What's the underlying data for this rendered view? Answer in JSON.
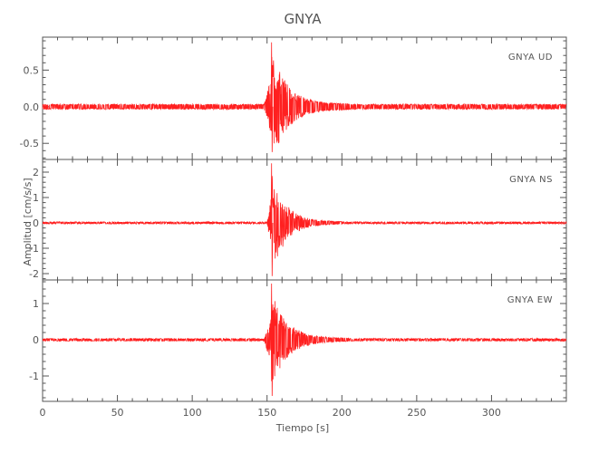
{
  "chart_data": {
    "type": "line",
    "title": "GNYA",
    "xlabel": "Tiempo [s]",
    "ylabel": "Amplitud [cm/s/s]",
    "xlim": [
      0,
      350
    ],
    "xticks": [
      0,
      50,
      100,
      150,
      200,
      250,
      300
    ],
    "line_color": "#ff2020",
    "grid": false,
    "panels": [
      {
        "label": "GNYA   UD",
        "ylim": [
          -0.72,
          0.95
        ],
        "yticks": [
          0.5,
          0.0,
          -0.5
        ],
        "ytick_labels": [
          "0.5",
          "0.0",
          "-0.5"
        ],
        "waveform": {
          "noise_amplitude": 0.035,
          "onset_s": 148,
          "peak_time_s": 153,
          "peak_max": 0.88,
          "peak_min": -0.62,
          "coda_end_s": 205
        }
      },
      {
        "label": "GNYA   NS",
        "ylim": [
          -2.25,
          2.5
        ],
        "yticks": [
          2,
          1,
          0,
          -1,
          -2
        ],
        "ytick_labels": [
          "2",
          "1",
          "0",
          "-1",
          "-2"
        ],
        "waveform": {
          "noise_amplitude": 0.04,
          "onset_s": 150,
          "peak_time_s": 153,
          "peak_max": 2.35,
          "peak_min": -2.1,
          "coda_end_s": 200
        }
      },
      {
        "label": "GNYA   EW",
        "ylim": [
          -1.7,
          1.65
        ],
        "yticks": [
          1,
          0,
          -1
        ],
        "ytick_labels": [
          "1",
          "0",
          "-1"
        ],
        "waveform": {
          "noise_amplitude": 0.035,
          "onset_s": 148,
          "peak_time_s": 153,
          "peak_max": 1.55,
          "peak_min": -1.55,
          "coda_end_s": 205
        }
      }
    ]
  }
}
